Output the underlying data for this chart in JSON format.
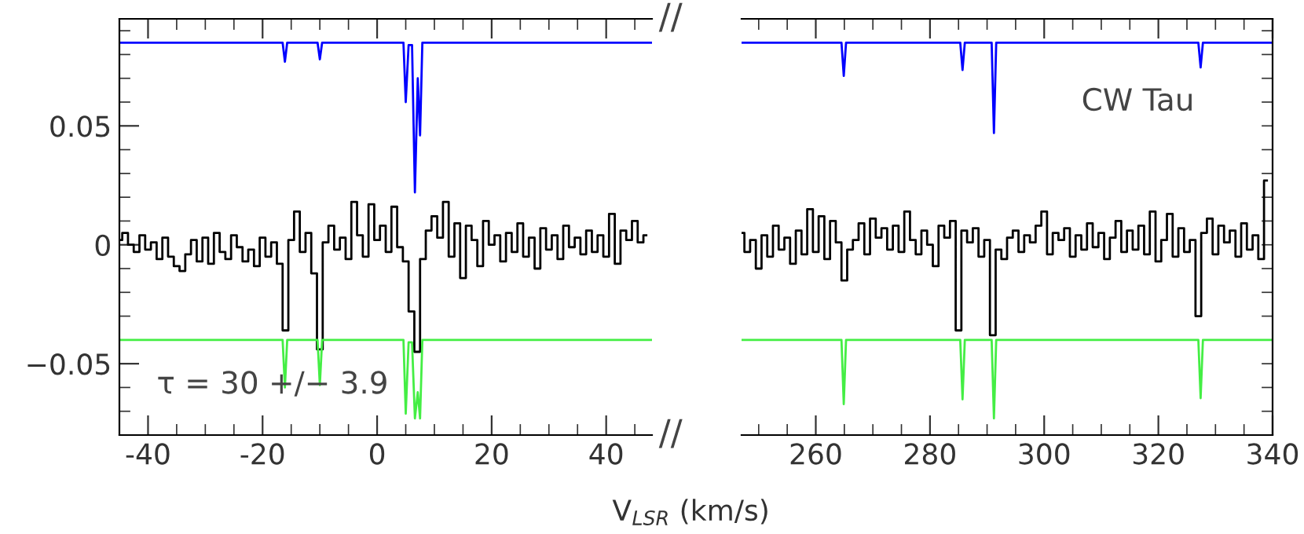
{
  "chart_data": [
    {
      "type": "line",
      "xlabel": "V$_{LSR}$ (km/s)",
      "xlim": [
        -45,
        48
      ],
      "ylim": [
        -0.08,
        0.095
      ],
      "xticks": [
        -40,
        {
          "value": -35,
          "label": null
        },
        {
          "value": -30,
          "label": null
        },
        {
          "value": -25,
          "label": null
        },
        -20,
        {
          "value": -15,
          "label": null
        },
        {
          "value": -10,
          "label": null
        },
        {
          "value": -5,
          "label": null
        },
        0,
        {
          "value": 5,
          "label": null
        },
        {
          "value": 10,
          "label": null
        },
        {
          "value": 15,
          "label": null
        },
        20,
        {
          "value": 25,
          "label": null
        },
        {
          "value": 30,
          "label": null
        },
        {
          "value": 35,
          "label": null
        },
        40,
        {
          "value": 45,
          "label": null
        }
      ],
      "yticks": [
        {
          "value": -0.07,
          "label": null
        },
        {
          "value": -0.06,
          "label": null
        },
        {
          "value": -0.05,
          "label": "−0.05"
        },
        {
          "value": -0.04,
          "label": null
        },
        {
          "value": -0.03,
          "label": null
        },
        {
          "value": -0.02,
          "label": null
        },
        {
          "value": -0.01,
          "label": null
        },
        0,
        {
          "value": 0.01,
          "label": null
        },
        {
          "value": 0.02,
          "label": null
        },
        {
          "value": 0.03,
          "label": null
        },
        {
          "value": 0.04,
          "label": null
        },
        0.05,
        {
          "value": 0.06,
          "label": null
        },
        {
          "value": 0.07,
          "label": null
        },
        {
          "value": 0.08,
          "label": null
        },
        {
          "value": 0.09,
          "label": null
        }
      ],
      "annotations": [
        "τ = 30 +/− 3.9",
        "//",
        "//"
      ],
      "series": [
        {
          "type": "step",
          "color": "#000000",
          "x": [
            -45,
            -44,
            -43,
            -42,
            -41,
            -40,
            -39,
            -38,
            -37,
            -36,
            -35,
            -34,
            -33,
            -32,
            -31,
            -30,
            -29,
            -28,
            -27,
            -26,
            -25,
            -24,
            -23,
            -22,
            -21,
            -20,
            -19,
            -18,
            -17,
            -16,
            -15,
            -14,
            -13,
            -12,
            -11,
            -10,
            -9,
            -8,
            -7,
            -6,
            -5,
            -4,
            -3,
            -2,
            -1,
            0,
            1,
            2,
            3,
            4,
            5,
            6,
            7,
            8,
            9,
            10,
            11,
            12,
            13,
            14,
            15,
            16,
            17,
            18,
            19,
            20,
            21,
            22,
            23,
            24,
            25,
            26,
            27,
            28,
            29,
            30,
            31,
            32,
            33,
            34,
            35,
            36,
            37,
            38,
            39,
            40,
            41,
            42,
            43,
            44,
            45,
            46,
            47
          ],
          "values": [
            0.002,
            0.005,
            0.0,
            -0.003,
            0.004,
            -0.002,
            0.001,
            -0.006,
            0.003,
            -0.005,
            -0.009,
            -0.011,
            -0.004,
            0.002,
            -0.007,
            0.003,
            -0.008,
            0.005,
            -0.003,
            -0.006,
            0.004,
            -0.001,
            -0.007,
            -0.002,
            -0.009,
            0.003,
            -0.005,
            0.001,
            -0.008,
            -0.036,
            0.002,
            0.014,
            -0.003,
            0.005,
            -0.012,
            -0.044,
            0.001,
            0.008,
            -0.002,
            0.003,
            -0.006,
            0.018,
            0.004,
            -0.005,
            0.017,
            0.002,
            0.008,
            -0.003,
            0.016,
            -0.001,
            -0.007,
            -0.028,
            -0.045,
            -0.006,
            0.006,
            0.012,
            0.003,
            0.018,
            -0.005,
            0.009,
            -0.014,
            0.008,
            0.002,
            -0.009,
            0.01,
            0.0,
            0.004,
            -0.007,
            0.005,
            -0.003,
            0.009,
            -0.005,
            0.003,
            -0.01,
            0.007,
            -0.002,
            0.004,
            -0.006,
            0.008,
            -0.001,
            0.003,
            -0.004,
            0.006,
            -0.003,
            0.004,
            -0.005,
            0.013,
            -0.008,
            0.006,
            0.002,
            0.01,
            0.001,
            0.004
          ]
        },
        {
          "type": "line",
          "color": "#0000ff",
          "x": [
            -45,
            -16.5,
            -16.1,
            -15.7,
            -10.4,
            -10.0,
            -9.6,
            4.6,
            5.0,
            5.5,
            6.1,
            6.6,
            7.1,
            7.5,
            7.9,
            48
          ],
          "values": [
            0.085,
            0.085,
            0.077,
            0.085,
            0.085,
            0.078,
            0.085,
            0.085,
            0.06,
            0.084,
            0.084,
            0.022,
            0.07,
            0.046,
            0.085,
            0.085
          ]
        },
        {
          "type": "line",
          "color": "#44ee44",
          "x": [
            -45,
            -16.5,
            -16.1,
            -15.7,
            -10.4,
            -10.0,
            -9.6,
            4.6,
            5.0,
            5.5,
            6.1,
            6.6,
            7.1,
            7.5,
            7.9,
            48
          ],
          "values": [
            -0.04,
            -0.04,
            -0.06,
            -0.04,
            -0.04,
            -0.059,
            -0.04,
            -0.04,
            -0.071,
            -0.041,
            -0.041,
            -0.073,
            -0.062,
            -0.073,
            -0.04,
            -0.04
          ]
        }
      ]
    },
    {
      "type": "line",
      "tick_labels": "x",
      "xlim": [
        247,
        340
      ],
      "ylim": [
        -0.08,
        0.095
      ],
      "xticks": [
        {
          "value": 250,
          "label": null
        },
        {
          "value": 255,
          "label": null
        },
        260,
        {
          "value": 265,
          "label": null
        },
        {
          "value": 270,
          "label": null
        },
        {
          "value": 275,
          "label": null
        },
        280,
        {
          "value": 285,
          "label": null
        },
        {
          "value": 290,
          "label": null
        },
        {
          "value": 295,
          "label": null
        },
        300,
        {
          "value": 305,
          "label": null
        },
        {
          "value": 310,
          "label": null
        },
        {
          "value": 315,
          "label": null
        },
        320,
        {
          "value": 325,
          "label": null
        },
        {
          "value": 330,
          "label": null
        },
        {
          "value": 335,
          "label": null
        },
        340
      ],
      "yticks": [
        {
          "value": -0.07,
          "label": null
        },
        {
          "value": -0.06,
          "label": null
        },
        {
          "value": -0.05,
          "label": null
        },
        {
          "value": -0.04,
          "label": null
        },
        {
          "value": -0.03,
          "label": null
        },
        {
          "value": -0.02,
          "label": null
        },
        {
          "value": -0.01,
          "label": null
        },
        {
          "value": 0,
          "label": null
        },
        {
          "value": 0.01,
          "label": null
        },
        {
          "value": 0.02,
          "label": null
        },
        {
          "value": 0.03,
          "label": null
        },
        {
          "value": 0.04,
          "label": null
        },
        {
          "value": 0.05,
          "label": null
        },
        {
          "value": 0.06,
          "label": null
        },
        {
          "value": 0.07,
          "label": null
        },
        {
          "value": 0.08,
          "label": null
        },
        {
          "value": 0.09,
          "label": null
        }
      ],
      "annotations": [
        "CW Tau"
      ],
      "series": [
        {
          "type": "step",
          "color": "#000000",
          "x": [
            247,
            248,
            249,
            250,
            251,
            252,
            253,
            254,
            255,
            256,
            257,
            258,
            259,
            260,
            261,
            262,
            263,
            264,
            265,
            266,
            267,
            268,
            269,
            270,
            271,
            272,
            273,
            274,
            275,
            276,
            277,
            278,
            279,
            280,
            281,
            282,
            283,
            284,
            285,
            286,
            287,
            288,
            289,
            290,
            291,
            292,
            293,
            294,
            295,
            296,
            297,
            298,
            299,
            300,
            301,
            302,
            303,
            304,
            305,
            306,
            307,
            308,
            309,
            310,
            311,
            312,
            313,
            314,
            315,
            316,
            317,
            318,
            319,
            320,
            321,
            322,
            323,
            324,
            325,
            326,
            327,
            328,
            329,
            330,
            331,
            332,
            333,
            334,
            335,
            336,
            337,
            338,
            339
          ],
          "values": [
            0.005,
            -0.003,
            0.002,
            -0.01,
            0.004,
            -0.005,
            0.008,
            -0.002,
            0.003,
            -0.008,
            0.006,
            -0.004,
            0.015,
            -0.003,
            0.012,
            -0.006,
            0.01,
            0.001,
            -0.015,
            -0.002,
            0.002,
            0.009,
            -0.004,
            0.011,
            0.003,
            0.007,
            -0.002,
            0.008,
            -0.003,
            0.014,
            0.002,
            -0.004,
            0.006,
            0.0,
            -0.009,
            0.008,
            0.003,
            0.01,
            -0.036,
            0.006,
            0.001,
            0.007,
            -0.005,
            0.002,
            -0.038,
            -0.002,
            -0.006,
            0.003,
            0.006,
            -0.003,
            0.004,
            0.001,
            0.008,
            0.014,
            -0.004,
            0.005,
            0.002,
            0.007,
            -0.005,
            0.004,
            -0.002,
            0.009,
            -0.001,
            0.005,
            -0.006,
            0.003,
            0.01,
            -0.003,
            0.006,
            -0.002,
            0.008,
            -0.004,
            0.014,
            -0.007,
            0.002,
            0.013,
            -0.005,
            0.007,
            -0.003,
            0.002,
            -0.03,
            0.005,
            0.011,
            -0.004,
            0.008,
            0.001,
            0.006,
            -0.005,
            0.009,
            -0.002,
            0.004,
            -0.006,
            0.027
          ]
        },
        {
          "type": "line",
          "color": "#0000ff",
          "x": [
            247,
            264.5,
            264.9,
            265.3,
            285.3,
            285.7,
            286.1,
            290.8,
            291.2,
            291.6,
            327.0,
            327.4,
            327.8,
            340
          ],
          "values": [
            0.085,
            0.085,
            0.071,
            0.085,
            0.085,
            0.0735,
            0.085,
            0.085,
            0.047,
            0.085,
            0.085,
            0.0746,
            0.085,
            0.085
          ]
        },
        {
          "type": "line",
          "color": "#44ee44",
          "x": [
            247,
            264.5,
            264.9,
            265.3,
            285.3,
            285.7,
            286.1,
            290.8,
            291.2,
            291.6,
            327.0,
            327.4,
            327.8,
            340
          ],
          "values": [
            -0.04,
            -0.04,
            -0.067,
            -0.04,
            -0.04,
            -0.065,
            -0.04,
            -0.04,
            -0.073,
            -0.04,
            -0.04,
            -0.0645,
            -0.04,
            -0.04
          ]
        }
      ]
    }
  ]
}
